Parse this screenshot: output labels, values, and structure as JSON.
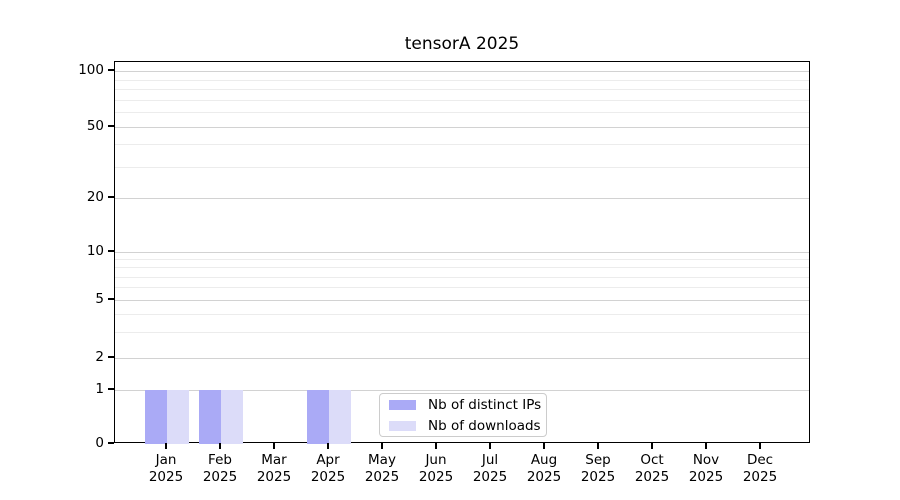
{
  "chart_data": {
    "type": "bar",
    "title": "tensorA 2025",
    "categories": [
      "Jan",
      "Feb",
      "Mar",
      "Apr",
      "May",
      "Jun",
      "Jul",
      "Aug",
      "Sep",
      "Oct",
      "Nov",
      "Dec"
    ],
    "x_tick_second_line": "2025",
    "series": [
      {
        "name": "Nb of distinct IPs",
        "color": "#aaaaf6",
        "values": [
          1,
          1,
          0,
          1,
          0,
          0,
          0,
          0,
          0,
          0,
          0,
          0
        ]
      },
      {
        "name": "Nb of downloads",
        "color": "#dcdcf9",
        "values": [
          1,
          1,
          0,
          1,
          0,
          0,
          0,
          0,
          0,
          0,
          0,
          0
        ]
      }
    ],
    "xlabel": "",
    "ylabel": "",
    "y_axis": {
      "scale": "symlog",
      "major_ticks": [
        0,
        1,
        2,
        5,
        10,
        20,
        50,
        100
      ],
      "minor_gridlines": [
        3,
        4,
        6,
        7,
        8,
        9,
        30,
        40,
        60,
        70,
        80,
        90
      ],
      "ylim": [
        0,
        130
      ]
    },
    "grid": "horizontal",
    "legend": {
      "position": "lower-center",
      "entries": [
        {
          "label": "Nb of distinct IPs",
          "color": "#aaaaf6"
        },
        {
          "label": "Nb of downloads",
          "color": "#dcdcf9"
        }
      ]
    }
  }
}
